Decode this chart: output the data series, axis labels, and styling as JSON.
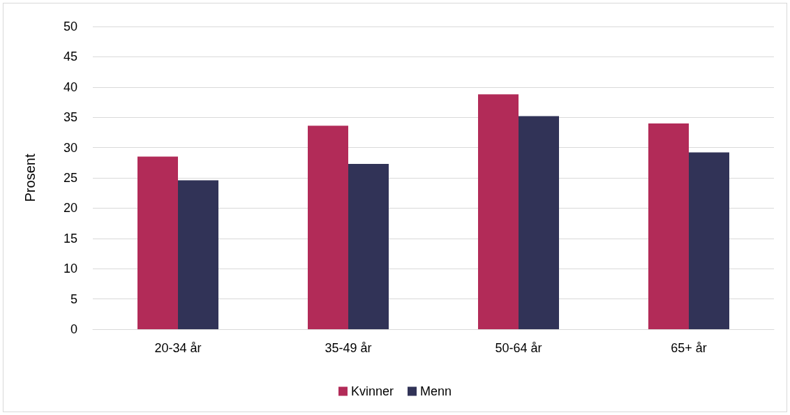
{
  "chart_data": {
    "type": "bar",
    "ylabel": "Prosent",
    "categories": [
      "20-34 år",
      "35-49 år",
      "50-64 år",
      "65+ år"
    ],
    "series": [
      {
        "name": "Kvinner",
        "color": "#b22b58",
        "values": [
          28.5,
          33.6,
          38.8,
          34.0
        ]
      },
      {
        "name": "Menn",
        "color": "#313357",
        "values": [
          24.6,
          27.3,
          35.2,
          29.2
        ]
      }
    ],
    "ylim": [
      0,
      50
    ],
    "yticks": [
      0,
      5,
      10,
      15,
      20,
      25,
      30,
      35,
      40,
      45,
      50
    ],
    "grid": "y",
    "legend": "bottom"
  }
}
